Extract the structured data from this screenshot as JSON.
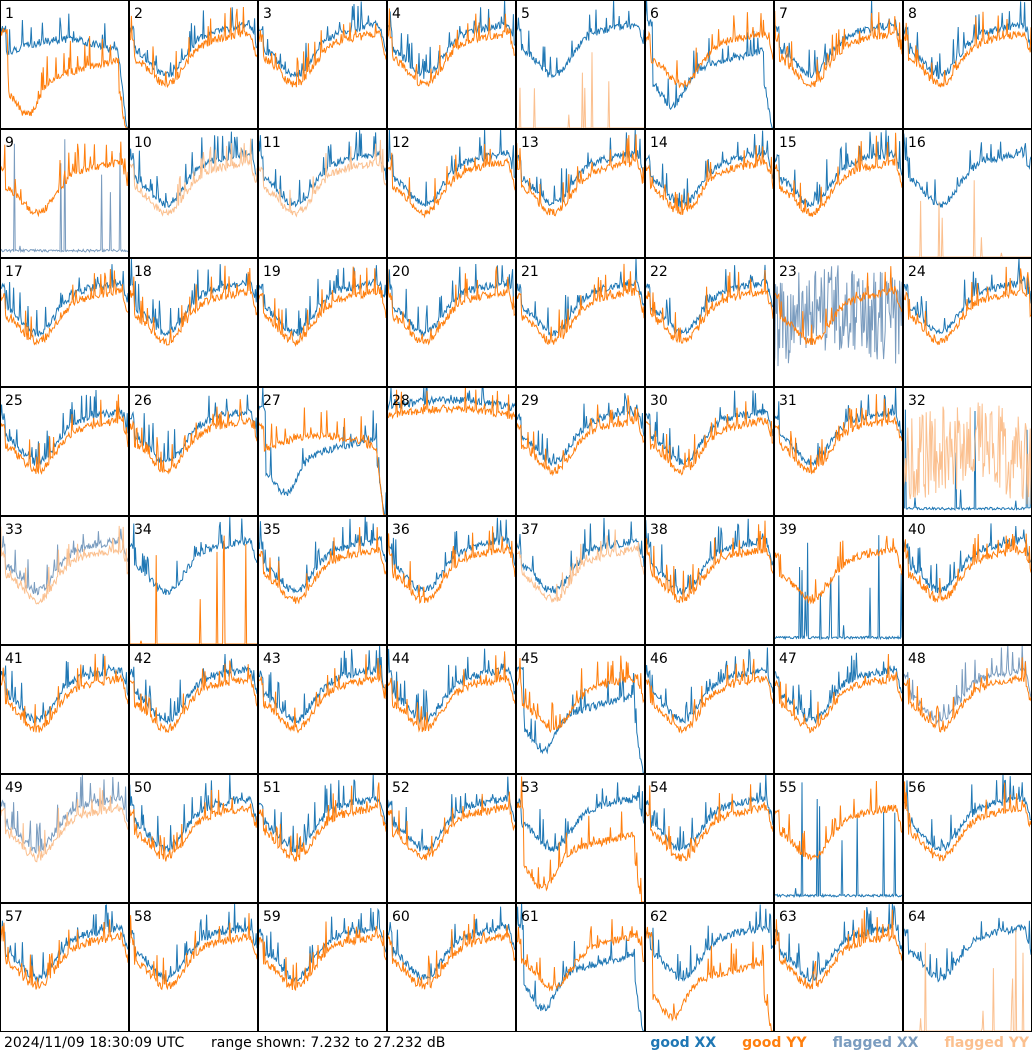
{
  "footer": {
    "timestamp": "2024/11/09 18:30:09 UTC",
    "range_text": "range shown: 7.232 to 27.232 dB"
  },
  "legend": [
    {
      "label": "good XX",
      "color": "#1f77b4"
    },
    {
      "label": "good YY",
      "color": "#ff7f0e"
    },
    {
      "label": "flagged XX",
      "color": "#7a9cbf"
    },
    {
      "label": "flagged YY",
      "color": "#fbc08f"
    }
  ],
  "chart_data": {
    "type": "line",
    "grid": "8x8 small multiples",
    "range_db": [
      7.232,
      27.232
    ],
    "panels": [
      {
        "id": "1",
        "xx": "good",
        "yy": "good",
        "xx_shape": "plateau",
        "yy_shape": "dip"
      },
      {
        "id": "2",
        "xx": "good",
        "yy": "good",
        "xx_shape": "normal",
        "yy_shape": "normal"
      },
      {
        "id": "3",
        "xx": "good",
        "yy": "good",
        "xx_shape": "normal",
        "yy_shape": "normal"
      },
      {
        "id": "4",
        "xx": "good",
        "yy": "good",
        "xx_shape": "normal",
        "yy_shape": "normal"
      },
      {
        "id": "5",
        "xx": "good",
        "yy": "flagged",
        "xx_shape": "normal",
        "yy_shape": "spikes"
      },
      {
        "id": "6",
        "xx": "good",
        "yy": "good",
        "xx_shape": "dip",
        "yy_shape": "normal"
      },
      {
        "id": "7",
        "xx": "good",
        "yy": "good",
        "xx_shape": "normal",
        "yy_shape": "normal"
      },
      {
        "id": "8",
        "xx": "good",
        "yy": "good",
        "xx_shape": "normal",
        "yy_shape": "normal"
      },
      {
        "id": "9",
        "xx": "flagged",
        "yy": "good",
        "xx_shape": "spikes",
        "yy_shape": "normal"
      },
      {
        "id": "10",
        "xx": "good",
        "yy": "flagged",
        "xx_shape": "normal",
        "yy_shape": "normal"
      },
      {
        "id": "11",
        "xx": "good",
        "yy": "flagged",
        "xx_shape": "normal",
        "yy_shape": "normal"
      },
      {
        "id": "12",
        "xx": "good",
        "yy": "good",
        "xx_shape": "normal",
        "yy_shape": "normal"
      },
      {
        "id": "13",
        "xx": "good",
        "yy": "good",
        "xx_shape": "normal",
        "yy_shape": "normal"
      },
      {
        "id": "14",
        "xx": "good",
        "yy": "good",
        "xx_shape": "normal",
        "yy_shape": "normal"
      },
      {
        "id": "15",
        "xx": "good",
        "yy": "good",
        "xx_shape": "normal",
        "yy_shape": "normal"
      },
      {
        "id": "16",
        "xx": "good",
        "yy": "flagged",
        "xx_shape": "normal",
        "yy_shape": "spikes"
      },
      {
        "id": "17",
        "xx": "good",
        "yy": "good",
        "xx_shape": "normal",
        "yy_shape": "normal"
      },
      {
        "id": "18",
        "xx": "good",
        "yy": "good",
        "xx_shape": "normal",
        "yy_shape": "normal"
      },
      {
        "id": "19",
        "xx": "good",
        "yy": "good",
        "xx_shape": "normal",
        "yy_shape": "normal"
      },
      {
        "id": "20",
        "xx": "good",
        "yy": "good",
        "xx_shape": "normal",
        "yy_shape": "normal"
      },
      {
        "id": "21",
        "xx": "good",
        "yy": "good",
        "xx_shape": "normal",
        "yy_shape": "normal"
      },
      {
        "id": "22",
        "xx": "good",
        "yy": "good",
        "xx_shape": "normal",
        "yy_shape": "normal"
      },
      {
        "id": "23",
        "xx": "flagged",
        "yy": "good",
        "xx_shape": "noisy",
        "yy_shape": "normal"
      },
      {
        "id": "24",
        "xx": "good",
        "yy": "good",
        "xx_shape": "normal",
        "yy_shape": "normal"
      },
      {
        "id": "25",
        "xx": "good",
        "yy": "good",
        "xx_shape": "normal",
        "yy_shape": "normal"
      },
      {
        "id": "26",
        "xx": "good",
        "yy": "good",
        "xx_shape": "normal",
        "yy_shape": "normal"
      },
      {
        "id": "27",
        "xx": "good",
        "yy": "good",
        "xx_shape": "dip",
        "yy_shape": "plateau"
      },
      {
        "id": "28",
        "xx": "good",
        "yy": "good",
        "xx_shape": "high",
        "yy_shape": "high"
      },
      {
        "id": "29",
        "xx": "good",
        "yy": "good",
        "xx_shape": "normal",
        "yy_shape": "normal"
      },
      {
        "id": "30",
        "xx": "good",
        "yy": "good",
        "xx_shape": "normal",
        "yy_shape": "normal"
      },
      {
        "id": "31",
        "xx": "good",
        "yy": "good",
        "xx_shape": "normal",
        "yy_shape": "normal"
      },
      {
        "id": "32",
        "xx": "good",
        "yy": "flagged",
        "xx_shape": "spikes",
        "yy_shape": "noisy"
      },
      {
        "id": "33",
        "xx": "flagged",
        "yy": "flagged",
        "xx_shape": "normal",
        "yy_shape": "normal"
      },
      {
        "id": "34",
        "xx": "good",
        "yy": "good",
        "xx_shape": "normal",
        "yy_shape": "spikes"
      },
      {
        "id": "35",
        "xx": "good",
        "yy": "good",
        "xx_shape": "normal",
        "yy_shape": "normal"
      },
      {
        "id": "36",
        "xx": "good",
        "yy": "good",
        "xx_shape": "normal",
        "yy_shape": "normal"
      },
      {
        "id": "37",
        "xx": "good",
        "yy": "flagged",
        "xx_shape": "normal",
        "yy_shape": "normal"
      },
      {
        "id": "38",
        "xx": "good",
        "yy": "good",
        "xx_shape": "normal",
        "yy_shape": "normal"
      },
      {
        "id": "39",
        "xx": "good",
        "yy": "good",
        "xx_shape": "spikes",
        "yy_shape": "normal"
      },
      {
        "id": "40",
        "xx": "good",
        "yy": "good",
        "xx_shape": "normal",
        "yy_shape": "normal"
      },
      {
        "id": "41",
        "xx": "good",
        "yy": "good",
        "xx_shape": "normal",
        "yy_shape": "normal"
      },
      {
        "id": "42",
        "xx": "good",
        "yy": "good",
        "xx_shape": "normal",
        "yy_shape": "normal"
      },
      {
        "id": "43",
        "xx": "good",
        "yy": "good",
        "xx_shape": "normal",
        "yy_shape": "normal"
      },
      {
        "id": "44",
        "xx": "good",
        "yy": "good",
        "xx_shape": "normal",
        "yy_shape": "normal"
      },
      {
        "id": "45",
        "xx": "good",
        "yy": "good",
        "xx_shape": "dip",
        "yy_shape": "normal"
      },
      {
        "id": "46",
        "xx": "good",
        "yy": "good",
        "xx_shape": "normal",
        "yy_shape": "normal"
      },
      {
        "id": "47",
        "xx": "good",
        "yy": "good",
        "xx_shape": "normal",
        "yy_shape": "normal"
      },
      {
        "id": "48",
        "xx": "flagged",
        "yy": "good",
        "xx_shape": "normal",
        "yy_shape": "normal"
      },
      {
        "id": "49",
        "xx": "flagged",
        "yy": "flagged",
        "xx_shape": "normal",
        "yy_shape": "normal"
      },
      {
        "id": "50",
        "xx": "good",
        "yy": "good",
        "xx_shape": "normal",
        "yy_shape": "normal"
      },
      {
        "id": "51",
        "xx": "good",
        "yy": "good",
        "xx_shape": "normal",
        "yy_shape": "normal"
      },
      {
        "id": "52",
        "xx": "good",
        "yy": "good",
        "xx_shape": "normal",
        "yy_shape": "normal"
      },
      {
        "id": "53",
        "xx": "good",
        "yy": "good",
        "xx_shape": "normal",
        "yy_shape": "dip"
      },
      {
        "id": "54",
        "xx": "good",
        "yy": "good",
        "xx_shape": "normal",
        "yy_shape": "normal"
      },
      {
        "id": "55",
        "xx": "good",
        "yy": "good",
        "xx_shape": "spikes",
        "yy_shape": "normal"
      },
      {
        "id": "56",
        "xx": "good",
        "yy": "good",
        "xx_shape": "normal",
        "yy_shape": "normal"
      },
      {
        "id": "57",
        "xx": "good",
        "yy": "good",
        "xx_shape": "normal",
        "yy_shape": "normal"
      },
      {
        "id": "58",
        "xx": "good",
        "yy": "good",
        "xx_shape": "normal",
        "yy_shape": "normal"
      },
      {
        "id": "59",
        "xx": "good",
        "yy": "good",
        "xx_shape": "normal",
        "yy_shape": "normal"
      },
      {
        "id": "60",
        "xx": "good",
        "yy": "good",
        "xx_shape": "normal",
        "yy_shape": "normal"
      },
      {
        "id": "61",
        "xx": "good",
        "yy": "good",
        "xx_shape": "dip",
        "yy_shape": "normal"
      },
      {
        "id": "62",
        "xx": "good",
        "yy": "good",
        "xx_shape": "normal",
        "yy_shape": "dip"
      },
      {
        "id": "63",
        "xx": "good",
        "yy": "good",
        "xx_shape": "normal",
        "yy_shape": "normal"
      },
      {
        "id": "64",
        "xx": "good",
        "yy": "flagged",
        "xx_shape": "normal",
        "yy_shape": "spikes"
      }
    ]
  }
}
